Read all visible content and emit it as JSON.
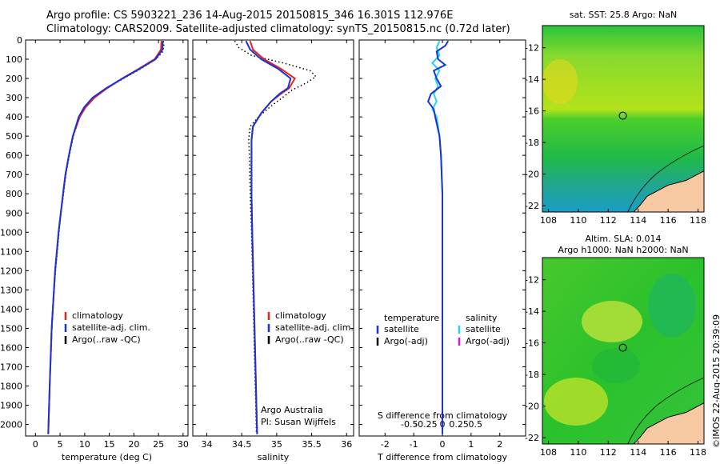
{
  "header": {
    "line1": "Argo profile: CS 5903221_236 14-Aug-2015 20150815_346 16.301S 112.976E",
    "line2": "Climatology: CARS2009. Satellite-adjusted climatology: synTS_20150815.nc (0.72d later)"
  },
  "watermark": "©IMOS 22-Aug-2015 20:39:09",
  "colors": {
    "climatology": "#e8221c",
    "satellite": "#1a33d6",
    "argo": "#000000",
    "sat_salinity": "#22d4e8",
    "argo_adj_salinity": "#d41ad4"
  },
  "chart_data": [
    {
      "type": "line",
      "id": "temperature",
      "xlabel": "temperature (deg C)",
      "xlim": [
        -2,
        31
      ],
      "xticks": [
        0,
        5,
        10,
        15,
        20,
        25,
        30
      ],
      "ylim": [
        2060,
        0
      ],
      "yticks": [
        0,
        100,
        200,
        300,
        400,
        500,
        600,
        700,
        800,
        900,
        1000,
        1100,
        1200,
        1300,
        1400,
        1500,
        1600,
        1700,
        1800,
        1900,
        2000
      ],
      "legend": [
        "climatology",
        "satellite-adj. clim.",
        "Argo(..raw -QC)"
      ],
      "series": [
        {
          "name": "climatology",
          "depth": [
            5,
            50,
            100,
            150,
            200,
            250,
            300,
            350,
            400,
            500,
            600,
            700,
            800,
            1000,
            1200,
            1500,
            1800,
            2050
          ],
          "values": [
            25.6,
            25.5,
            24.2,
            21.0,
            17.6,
            14.6,
            12.0,
            10.2,
            9.0,
            7.6,
            6.8,
            6.1,
            5.6,
            4.7,
            4.0,
            3.3,
            2.9,
            2.6
          ]
        },
        {
          "name": "satellite-adj. clim.",
          "depth": [
            5,
            50,
            100,
            150,
            200,
            250,
            300,
            350,
            400,
            500,
            600,
            700,
            800,
            1000,
            1200,
            1500,
            1800,
            2050
          ],
          "values": [
            25.9,
            25.8,
            24.4,
            21.2,
            17.7,
            14.4,
            11.6,
            9.9,
            8.8,
            7.6,
            6.8,
            6.1,
            5.6,
            4.7,
            4.0,
            3.3,
            2.9,
            2.6
          ]
        },
        {
          "name": "Argo(..raw -QC)",
          "depth": [
            5,
            30,
            60,
            100,
            150,
            200,
            250,
            300,
            350,
            400,
            500,
            600,
            700,
            800,
            900,
            1000,
            1200,
            1400,
            1600,
            1800,
            2000,
            2050
          ],
          "values": [
            26.0,
            26.1,
            25.9,
            24.5,
            21.4,
            17.9,
            14.6,
            11.8,
            10.1,
            9.0,
            7.7,
            6.9,
            6.2,
            5.7,
            5.2,
            4.8,
            4.1,
            3.5,
            3.2,
            2.9,
            2.7,
            2.6
          ]
        }
      ]
    },
    {
      "type": "line",
      "id": "salinity",
      "xlabel": "salinity",
      "xlim": [
        33.8,
        36.1
      ],
      "xticks": [
        34,
        34.5,
        35,
        35.5,
        36
      ],
      "ylim": [
        2060,
        0
      ],
      "legend": [
        "climatology",
        "satellite-adj. clim.",
        "Argo(..raw -QC)"
      ],
      "annotation": [
        "Argo Australia",
        "PI: Susan Wijffels"
      ],
      "series": [
        {
          "name": "climatology",
          "depth": [
            5,
            50,
            100,
            150,
            200,
            250,
            280,
            320,
            380,
            450,
            520,
            600,
            800,
            1000,
            1300,
            1600,
            1900,
            2050
          ],
          "values": [
            34.62,
            34.66,
            34.82,
            35.06,
            35.26,
            35.18,
            35.06,
            34.92,
            34.78,
            34.66,
            34.64,
            34.64,
            34.64,
            34.65,
            34.67,
            34.69,
            34.71,
            34.72
          ]
        },
        {
          "name": "satellite-adj. clim.",
          "depth": [
            5,
            50,
            100,
            150,
            200,
            250,
            280,
            320,
            380,
            450,
            520,
            600,
            800,
            1000,
            1300,
            1600,
            1900,
            2050
          ],
          "values": [
            34.56,
            34.62,
            34.78,
            35.02,
            35.2,
            35.16,
            35.04,
            34.92,
            34.78,
            34.66,
            34.64,
            34.64,
            34.64,
            34.65,
            34.67,
            34.69,
            34.71,
            34.72
          ]
        },
        {
          "name": "Argo(..raw -QC)",
          "depth": [
            5,
            40,
            80,
            120,
            160,
            190,
            220,
            260,
            300,
            350,
            400,
            450,
            520,
            600,
            800,
            1000,
            1300,
            1600,
            1900,
            2050
          ],
          "values": [
            34.4,
            34.46,
            34.64,
            35.1,
            35.48,
            35.56,
            35.44,
            35.22,
            35.08,
            34.9,
            34.74,
            34.62,
            34.6,
            34.61,
            34.62,
            34.64,
            34.66,
            34.68,
            34.7,
            34.71
          ]
        }
      ]
    },
    {
      "type": "line",
      "id": "difference",
      "xlabel": "T difference from climatology",
      "xlabel_top": "S difference from climatology",
      "xlim": [
        -2.9,
        2.9
      ],
      "xticks": [
        -2,
        -1,
        0,
        1,
        2
      ],
      "xticks_top": [
        -0.5,
        -0.25,
        0,
        0.25,
        0.5
      ],
      "ylim": [
        2060,
        0
      ],
      "legend_headers": [
        "temperature",
        "salinity"
      ],
      "legend": [
        "satellite",
        "Argo(-adj)",
        "satellite",
        "Argo(-adj)"
      ],
      "series": [
        {
          "name": "temperature satellite",
          "depth": [
            5,
            30,
            60,
            100,
            130,
            160,
            200,
            240,
            280,
            320,
            360,
            400,
            500,
            600,
            800,
            1000,
            1200,
            1500,
            1800,
            2050
          ],
          "values": [
            0.2,
            0.1,
            -0.2,
            -0.15,
            0.1,
            -0.3,
            -0.2,
            -0.05,
            -0.4,
            -0.5,
            -0.3,
            -0.25,
            -0.1,
            -0.05,
            0,
            0,
            0,
            0,
            0,
            0
          ]
        },
        {
          "name": "salinity satellite",
          "depth": [
            5,
            40,
            80,
            120,
            160,
            200,
            240,
            280,
            320,
            360,
            400,
            500,
            600,
            800,
            1000,
            1500,
            2050
          ],
          "values": [
            -0.1,
            -0.2,
            -0.1,
            -0.35,
            -0.1,
            -0.25,
            -0.15,
            -0.3,
            -0.2,
            -0.35,
            -0.2,
            -0.1,
            -0.05,
            0,
            0,
            0,
            0
          ]
        }
      ]
    }
  ],
  "maps": {
    "top": {
      "title": "sat. SST: 25.8 Argo: NaN",
      "lat_ticks": [
        -12,
        -14,
        -16,
        -18,
        -20,
        -22
      ],
      "lon_ticks": [
        108,
        110,
        112,
        114,
        116,
        118
      ]
    },
    "bottom": {
      "title_line1": "Altim. SLA: 0.014",
      "title_line2": "Argo h1000: NaN h2000: NaN",
      "lat_ticks": [
        -12,
        -14,
        -16,
        -18,
        -20,
        -22
      ],
      "lon_ticks": [
        108,
        110,
        112,
        114,
        116,
        118
      ]
    }
  }
}
